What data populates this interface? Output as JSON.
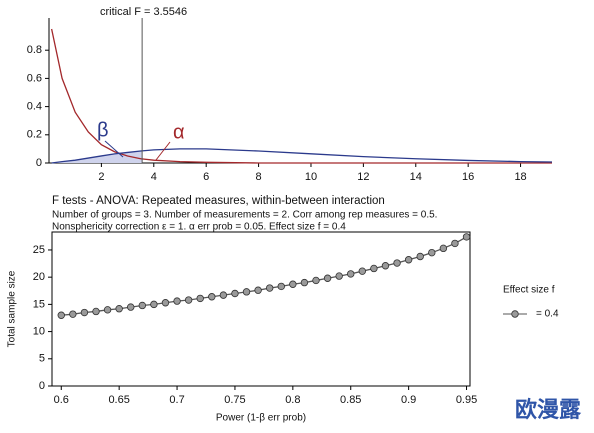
{
  "chart_data": [
    {
      "type": "line",
      "x": [
        0.1,
        0.5,
        1,
        1.5,
        2,
        2.5,
        3,
        3.5,
        4,
        5,
        6,
        8,
        10,
        12,
        14,
        16,
        18,
        19.2
      ],
      "series": [
        {
          "name": "α",
          "color": "#a3282b",
          "values": [
            0.95,
            0.6,
            0.36,
            0.22,
            0.13,
            0.08,
            0.05,
            0.03,
            0.02,
            0.01,
            0.005,
            0,
            0,
            0,
            0,
            0,
            0,
            0
          ]
        },
        {
          "name": "β",
          "color": "#2b3a8c",
          "values": [
            0,
            0.01,
            0.02,
            0.035,
            0.05,
            0.065,
            0.075,
            0.085,
            0.093,
            0.1,
            0.1,
            0.085,
            0.065,
            0.045,
            0.03,
            0.018,
            0.01,
            0.007
          ]
        }
      ],
      "critical_value": 3.5546,
      "critical_label": "critical F = 3.5546",
      "xlim": [
        0,
        19.2
      ],
      "xticks": [
        2,
        4,
        6,
        8,
        10,
        12,
        14,
        16,
        18
      ],
      "ylim": [
        0,
        1
      ],
      "yticks": [
        0,
        0.2,
        0.4,
        0.6,
        0.8
      ]
    },
    {
      "type": "line",
      "title": "F tests - ANOVA: Repeated measures, within-between interaction",
      "subtitle": [
        "Number of groups = 3. Number of measurements = 2. Corr among rep measures = 0.5.",
        "Nonsphericity correction ε = 1. α err prob = 0.05. Effect size f = 0.4"
      ],
      "x_label": "Power (1-β err prob)",
      "y_label": "Total sample size",
      "legend_title": "Effect size f",
      "x": [
        0.6,
        0.61,
        0.62,
        0.63,
        0.64,
        0.65,
        0.66,
        0.67,
        0.68,
        0.69,
        0.7,
        0.71,
        0.72,
        0.73,
        0.74,
        0.75,
        0.76,
        0.77,
        0.78,
        0.79,
        0.8,
        0.81,
        0.82,
        0.83,
        0.84,
        0.85,
        0.86,
        0.87,
        0.88,
        0.89,
        0.9,
        0.91,
        0.92,
        0.93,
        0.94,
        0.95
      ],
      "series": [
        {
          "name": "= 0.4",
          "color": "#555555",
          "values": [
            13.0,
            13.2,
            13.5,
            13.7,
            14.0,
            14.2,
            14.5,
            14.8,
            15.0,
            15.3,
            15.6,
            15.8,
            16.1,
            16.4,
            16.7,
            17.0,
            17.3,
            17.6,
            18.0,
            18.3,
            18.7,
            19.0,
            19.4,
            19.8,
            20.2,
            20.6,
            21.1,
            21.6,
            22.1,
            22.6,
            23.2,
            23.8,
            24.5,
            25.3,
            26.2,
            27.4
          ]
        }
      ],
      "xlim": [
        0.592,
        0.953
      ],
      "xticks": [
        0.6,
        0.65,
        0.7,
        0.75,
        0.8,
        0.85,
        0.9,
        0.95
      ],
      "ylim": [
        0,
        28.3
      ],
      "yticks": [
        0,
        5,
        10,
        15,
        20,
        25
      ]
    }
  ],
  "watermark": "欧漫露"
}
